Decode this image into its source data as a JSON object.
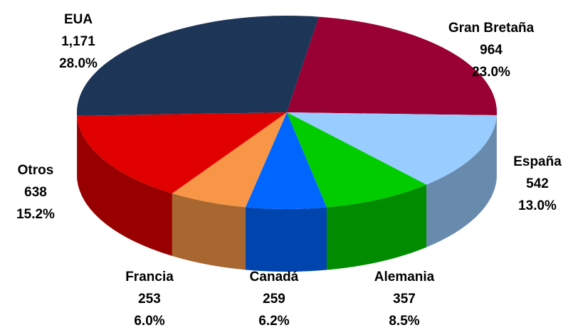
{
  "chart_data": {
    "type": "pie",
    "categories": [
      "EUA",
      "Gran Bretaña",
      "España",
      "Alemania",
      "Canadá",
      "Francia",
      "Otros"
    ],
    "values": [
      1171,
      964,
      542,
      357,
      259,
      253,
      638
    ],
    "value_labels": [
      "1,171",
      "964",
      "542",
      "357",
      "259",
      "253",
      "638"
    ],
    "percentages": [
      28.0,
      23.0,
      13.0,
      8.5,
      6.2,
      6.0,
      15.2
    ],
    "percentage_labels": [
      "28.0%",
      "23.0%",
      "13.0%",
      "8.5%",
      "6.2%",
      "6.0%",
      "15.2%"
    ],
    "colors": [
      "#1d3557",
      "#990033",
      "#99ccff",
      "#00cc00",
      "#0066ff",
      "#f79646",
      "#e00000"
    ]
  }
}
